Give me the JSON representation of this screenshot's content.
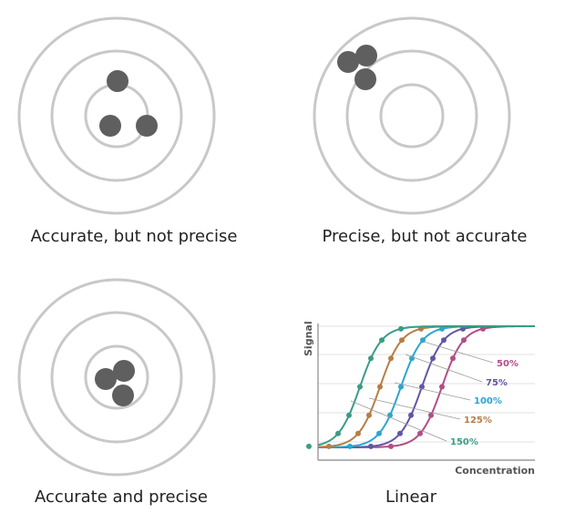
{
  "captions": {
    "accurate_not_precise": "Accurate, but not precise",
    "precise_not_accurate": "Precise, but not accurate",
    "accurate_and_precise": "Accurate and precise",
    "linear": "Linear"
  },
  "colors": {
    "ring": "#c8c8c8",
    "dot": "#5f5f5f",
    "axis": "#888888",
    "grid": "#e2e2e2"
  },
  "chart_data": {
    "type": "line",
    "xlabel": "Concentration",
    "ylabel": "Signal",
    "series": [
      {
        "name": "50%",
        "color": "#b24d86"
      },
      {
        "name": "75%",
        "color": "#6156a6"
      },
      {
        "name": "100%",
        "color": "#2ba6cf"
      },
      {
        "name": "125%",
        "color": "#b67e46"
      },
      {
        "name": "150%",
        "color": "#3a9c86"
      }
    ]
  }
}
